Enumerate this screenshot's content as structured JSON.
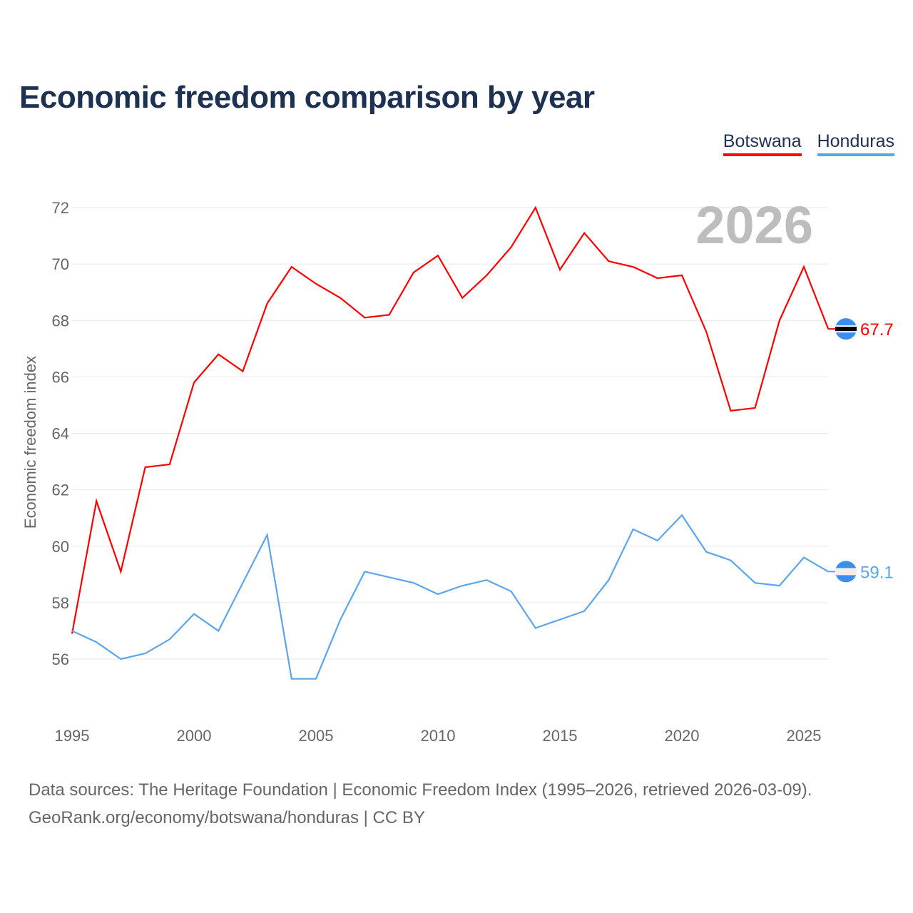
{
  "title": "Economic freedom comparison by year",
  "legend": [
    "Botswana",
    "Honduras"
  ],
  "source_line1": "Data sources: The Heritage Foundation | Economic Freedom Index (1995–2026, retrieved 2026-03-09).",
  "source_line2": "GeoRank.org/economy/botswana/honduras | CC BY",
  "chart_data": {
    "type": "line",
    "title": "Economic freedom comparison by year",
    "ylabel": "Economic freedom index",
    "xlabel": "",
    "year_watermark": "2026",
    "ylim": [
      54,
      72.5
    ],
    "xlim": [
      1995,
      2026
    ],
    "yticks": [
      56,
      58,
      60,
      62,
      64,
      66,
      68,
      70,
      72
    ],
    "xticks": [
      1995,
      2000,
      2005,
      2010,
      2015,
      2020,
      2025
    ],
    "grid": true,
    "legend_position": "top-right",
    "x": [
      1995,
      1996,
      1997,
      1998,
      1999,
      2000,
      2001,
      2002,
      2003,
      2004,
      2005,
      2006,
      2007,
      2008,
      2009,
      2010,
      2011,
      2012,
      2013,
      2014,
      2015,
      2016,
      2017,
      2018,
      2019,
      2020,
      2021,
      2022,
      2023,
      2024,
      2025,
      2026
    ],
    "series": [
      {
        "name": "Botswana",
        "color": "#ff0000",
        "end_label": "67.7",
        "values": [
          56.9,
          61.6,
          59.1,
          62.8,
          62.9,
          65.8,
          66.8,
          66.2,
          68.6,
          69.9,
          69.3,
          68.8,
          68.1,
          68.2,
          69.7,
          70.3,
          68.8,
          69.6,
          70.6,
          72.0,
          69.8,
          71.1,
          70.1,
          69.9,
          69.5,
          69.6,
          67.6,
          64.8,
          64.9,
          68.0,
          69.9,
          67.7
        ]
      },
      {
        "name": "Honduras",
        "color": "#5aa5eb",
        "end_label": "59.1",
        "values": [
          57.0,
          56.6,
          56.0,
          56.2,
          56.7,
          57.6,
          57.0,
          58.7,
          60.4,
          55.3,
          55.3,
          57.4,
          59.1,
          58.9,
          58.7,
          58.3,
          58.6,
          58.8,
          58.4,
          57.1,
          57.4,
          57.7,
          58.8,
          60.6,
          60.2,
          61.1,
          59.8,
          59.5,
          58.7,
          58.6,
          59.6,
          59.1
        ]
      }
    ]
  }
}
